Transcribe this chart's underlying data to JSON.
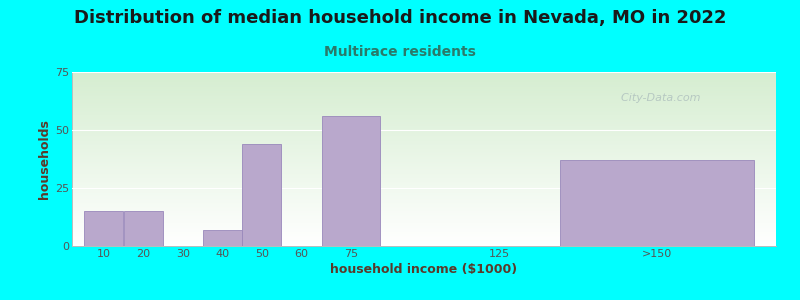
{
  "title": "Distribution of median household income in Nevada, MO in 2022",
  "subtitle": "Multirace residents",
  "xlabel": "household income ($1000)",
  "ylabel": "households",
  "background_color": "#00FFFF",
  "bar_color": "#b9a8cc",
  "bar_edge_color": "#9988bb",
  "watermark": "  City-Data.com",
  "title_color": "#1a1a1a",
  "subtitle_color": "#2a7a6a",
  "xlabel_color": "#5a3a2a",
  "ylabel_color": "#5a3a2a",
  "tick_color": "#555555",
  "categories": [
    "10",
    "20",
    "30",
    "40",
    "50",
    "60",
    "75",
    "125",
    ">150"
  ],
  "values": [
    15,
    15,
    0,
    7,
    44,
    0,
    56,
    0,
    37
  ],
  "bar_lefts": [
    0,
    1,
    2,
    3,
    4,
    5,
    6,
    9,
    12
  ],
  "bar_widths": [
    1,
    1,
    1,
    1,
    1,
    1,
    1.5,
    1,
    5
  ],
  "tick_positions": [
    0.5,
    1.5,
    2.5,
    3.5,
    4.5,
    5.5,
    6.75,
    10.5,
    14.5
  ],
  "tick_labels": [
    "10",
    "20",
    "30",
    "40",
    "50",
    "60",
    "75",
    "125",
    ">150"
  ],
  "xlim": [
    -0.3,
    17.5
  ],
  "ylim": [
    0,
    75
  ],
  "yticks": [
    0,
    25,
    50,
    75
  ],
  "title_fontsize": 13,
  "subtitle_fontsize": 10,
  "axis_label_fontsize": 9,
  "tick_fontsize": 8,
  "watermark_fontsize": 8
}
